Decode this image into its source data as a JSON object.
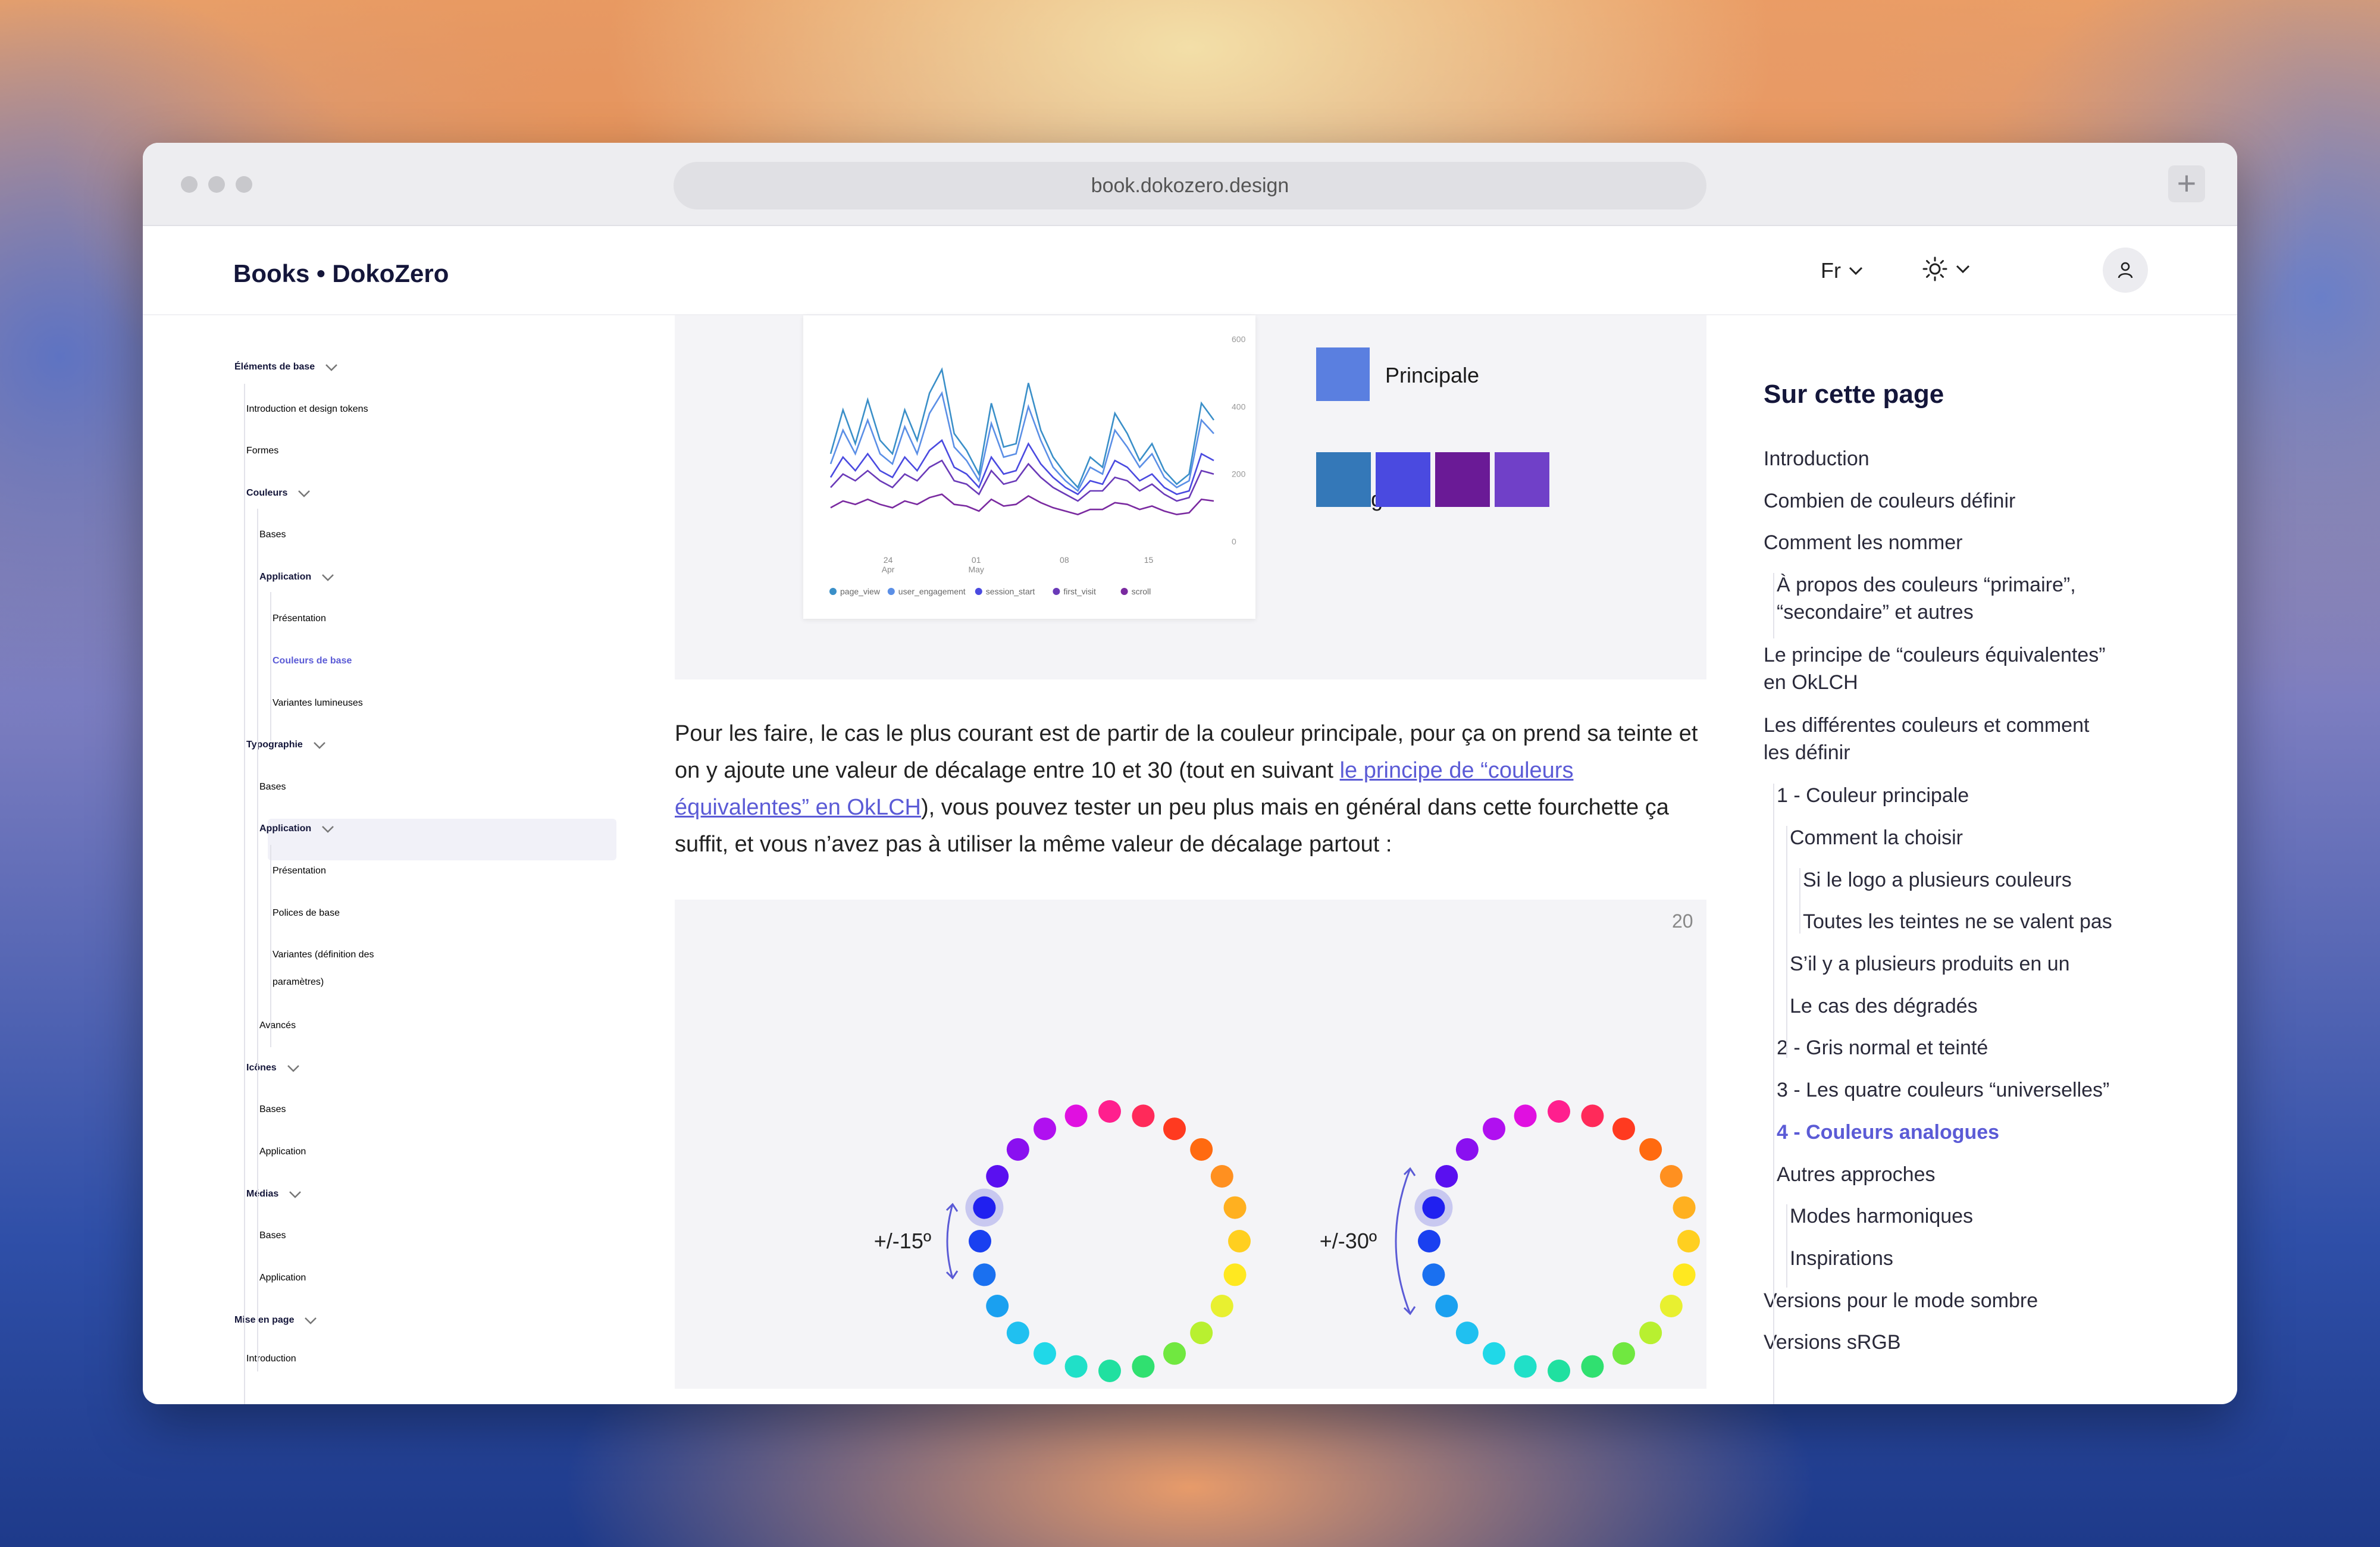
{
  "browser": {
    "url": "book.dokozero.design",
    "new_tab": "+"
  },
  "header": {
    "brand": "Books • DokoZero",
    "lang": "Fr"
  },
  "sidebar": {
    "items": [
      {
        "label": "Éléments de base",
        "bold": true
      },
      {
        "label": "Introduction et design tokens"
      },
      {
        "label": "Formes"
      },
      {
        "label": "Couleurs",
        "bold": true
      },
      {
        "label": "Bases"
      },
      {
        "label": "Application",
        "bold": true
      },
      {
        "label": "Présentation"
      },
      {
        "label": "Couleurs de base",
        "active": true
      },
      {
        "label": "Variantes lumineuses"
      },
      {
        "label": "Typographie",
        "bold": true
      },
      {
        "label": "Bases"
      },
      {
        "label": "Application",
        "bold": true
      },
      {
        "label": "Présentation"
      },
      {
        "label": "Polices de base"
      },
      {
        "label": "Variantes (définition des"
      },
      {
        "label": "paramètres)"
      },
      {
        "label": "Avancés"
      },
      {
        "label": "Icônes",
        "bold": true
      },
      {
        "label": "Bases"
      },
      {
        "label": "Application"
      },
      {
        "label": "Médias",
        "bold": true
      },
      {
        "label": "Bases"
      },
      {
        "label": "Application"
      },
      {
        "label": "Mise en page",
        "bold": true
      },
      {
        "label": "Introduction"
      }
    ]
  },
  "figure1": {
    "primary_label": "Principale",
    "analog_label": "Analogues",
    "primary_color": "#5a7fe0",
    "analog_colors": [
      "#3478b8",
      "#4a4ae0",
      "#6a1a96",
      "#7040c8"
    ]
  },
  "chart_data": {
    "type": "line",
    "x_ticks": [
      "24\nApr",
      "01\nMay",
      "08",
      "15"
    ],
    "y_ticks": [
      "600",
      "400",
      "200",
      "0"
    ],
    "ylim": [
      0,
      600
    ],
    "legend": [
      "page_view",
      "user_engagement",
      "session_start",
      "first_visit",
      "scroll"
    ],
    "series_colors": [
      "#3a8fc8",
      "#5b8fe6",
      "#4a4ae0",
      "#6a3ab8",
      "#7a2aa0"
    ],
    "series": [
      {
        "name": "page_view",
        "values": [
          260,
          390,
          290,
          420,
          300,
          260,
          390,
          300,
          440,
          510,
          320,
          270,
          200,
          410,
          280,
          290,
          470,
          330,
          250,
          200,
          160,
          250,
          220,
          380,
          320,
          240,
          290,
          210,
          170,
          200,
          410,
          360
        ]
      },
      {
        "name": "user_engagement",
        "values": [
          230,
          330,
          260,
          360,
          260,
          230,
          340,
          260,
          380,
          440,
          280,
          240,
          180,
          350,
          250,
          260,
          400,
          300,
          220,
          180,
          150,
          220,
          200,
          330,
          280,
          220,
          260,
          190,
          160,
          180,
          360,
          320
        ]
      },
      {
        "name": "session_start",
        "values": [
          190,
          250,
          210,
          260,
          210,
          190,
          250,
          210,
          270,
          300,
          220,
          200,
          160,
          250,
          200,
          210,
          290,
          230,
          190,
          160,
          140,
          180,
          170,
          240,
          220,
          180,
          200,
          160,
          140,
          150,
          260,
          240
        ]
      },
      {
        "name": "first_visit",
        "values": [
          160,
          200,
          180,
          210,
          180,
          160,
          200,
          180,
          220,
          240,
          180,
          170,
          140,
          210,
          170,
          180,
          230,
          190,
          160,
          140,
          120,
          150,
          150,
          190,
          180,
          150,
          170,
          140,
          120,
          130,
          210,
          200
        ]
      },
      {
        "name": "scroll",
        "values": [
          100,
          120,
          110,
          125,
          110,
          100,
          120,
          110,
          130,
          140,
          110,
          105,
          90,
          125,
          105,
          110,
          135,
          115,
          100,
          90,
          80,
          95,
          95,
          115,
          110,
          95,
          105,
          90,
          80,
          85,
          125,
          120
        ]
      }
    ]
  },
  "paragraph": {
    "text_before": "Pour les faire, le cas le plus courant est de partir de la couleur principale, pour ça on prend sa teinte et on y ajoute une valeur de décalage entre 10 et 30 (tout en suivant ",
    "link": "le principe de “couleurs équivalentes” en OkLCH",
    "text_after": "), vous pouvez tester un peu plus mais en général dans cette fourchette ça suffit, et vous n’avez pas à utiliser la même valeur de décalage partout :"
  },
  "figure2": {
    "number": "20",
    "wheel_left_label": "+/-15º",
    "wheel_right_label": "+/-30º",
    "wheel_colors": [
      "#ff1f8e",
      "#ff2a5a",
      "#ff3a20",
      "#ff6a10",
      "#ff9020",
      "#ffb020",
      "#ffcf20",
      "#ffe820",
      "#e8f030",
      "#b8f030",
      "#70e840",
      "#30e070",
      "#20e0a0",
      "#20e0c8",
      "#20d8e8",
      "#20c0f0",
      "#1aa0f0",
      "#1a70f0",
      "#1a40f0",
      "#2020f0",
      "#5a10f0",
      "#8a10f0",
      "#b010f0",
      "#e010e0"
    ],
    "left_swatches": [
      "#0a78f0",
      "#2020f0",
      "#6010f0"
    ],
    "right_swatches": [
      "#1aa0f0",
      "#2020f0",
      "#8a10f0"
    ]
  },
  "toc": {
    "title": "Sur cette page",
    "items": [
      {
        "label": "Introduction"
      },
      {
        "label": "Combien de couleurs définir"
      },
      {
        "label": "Comment les nommer"
      },
      {
        "label": "À propos des couleurs “primaire”,"
      },
      {
        "label": "“secondaire” et autres"
      },
      {
        "label": "Le principe de “couleurs équivalentes”"
      },
      {
        "label": "en OkLCH"
      },
      {
        "label": "Les différentes couleurs et comment"
      },
      {
        "label": "les définir"
      },
      {
        "label": "1 - Couleur principale"
      },
      {
        "label": "Comment la choisir"
      },
      {
        "label": "Si le logo a plusieurs couleurs"
      },
      {
        "label": "Toutes les teintes ne se valent pas"
      },
      {
        "label": "S’il y a plusieurs produits en un"
      },
      {
        "label": "Le cas des dégradés"
      },
      {
        "label": "2 - Gris normal et teinté"
      },
      {
        "label": "3 - Les quatre couleurs “universelles”"
      },
      {
        "label": "4 - Couleurs analogues",
        "active": true
      },
      {
        "label": "Autres approches"
      },
      {
        "label": "Modes harmoniques"
      },
      {
        "label": "Inspirations"
      },
      {
        "label": "Versions pour le mode sombre"
      },
      {
        "label": "Versions sRGB"
      }
    ]
  }
}
